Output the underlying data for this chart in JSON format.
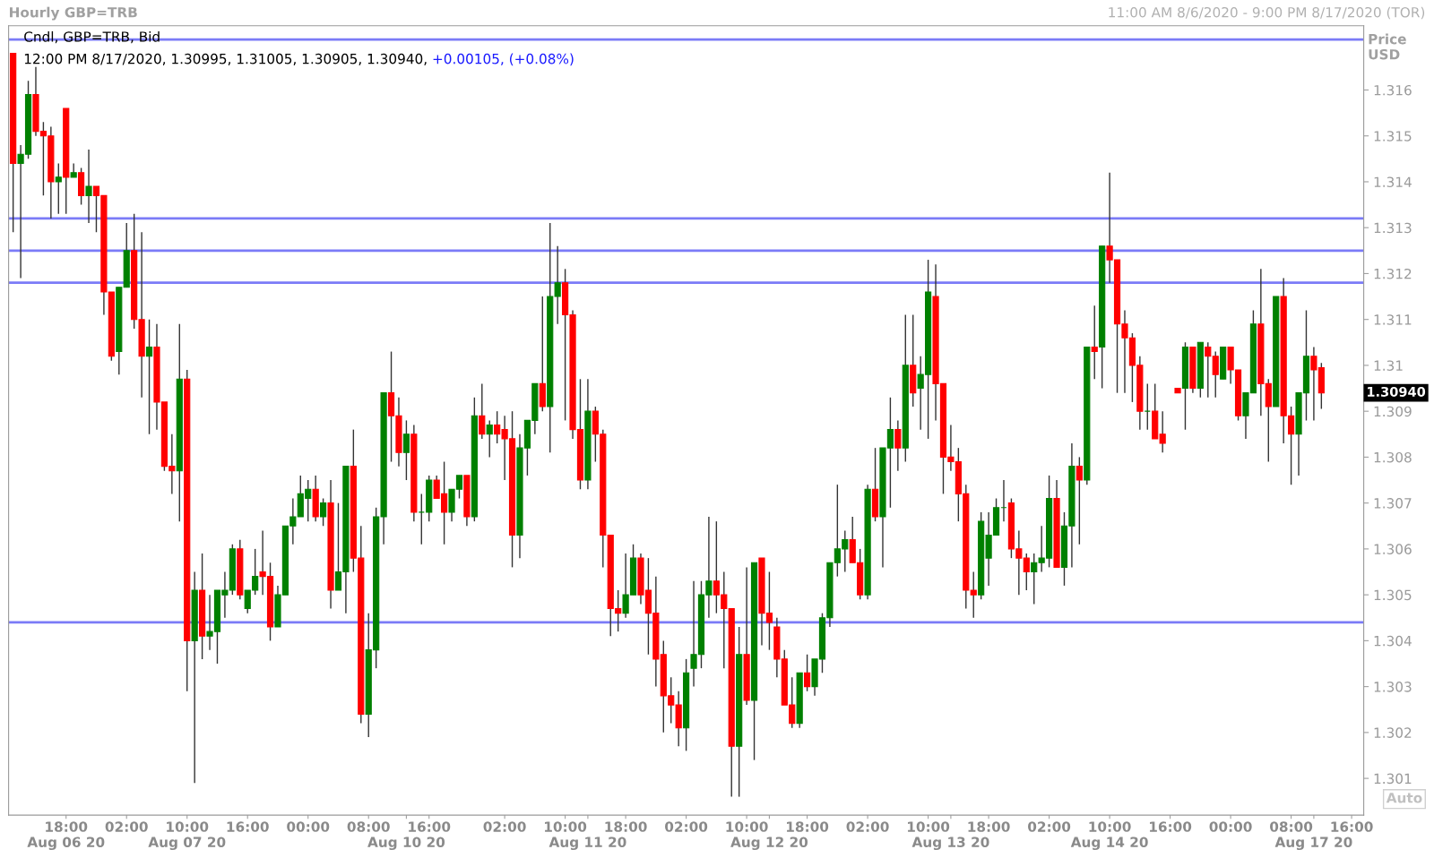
{
  "chart_data": {
    "type": "candlestick",
    "title": "Hourly GBP=TRB",
    "subtitle": "11:00 AM 8/6/2020 - 9:00 PM 8/17/2020 (TOR)",
    "ylabel": "Price\nUSD",
    "annotations": [
      "Cndl, GBP=TRB, Bid",
      "12:00 PM 8/17/2020, 1.30995, 1.31005, 1.30905, 1.30940,",
      "+0.00105, (+0.08%)",
      "1.30940",
      "Auto"
    ],
    "categories": [
      null,
      null,
      null,
      null,
      null,
      null,
      null,
      "18:00\nAug 06 20",
      null,
      null,
      null,
      null,
      null,
      null,
      null,
      "02:00",
      null,
      null,
      null,
      null,
      null,
      null,
      null,
      "10:00\nAug 07 20",
      null,
      null,
      null,
      null,
      null,
      null,
      null,
      "16:00",
      null,
      null,
      null,
      null,
      null,
      null,
      null,
      "00:00",
      null,
      null,
      null,
      null,
      null,
      null,
      null,
      "08:00",
      null,
      null,
      null,
      null,
      "\nAug 10 20",
      null,
      null,
      "16:00",
      null,
      null,
      null,
      null,
      null,
      null,
      null,
      null,
      null,
      "02:00",
      null,
      null,
      null,
      null,
      null,
      null,
      null,
      "10:00",
      null,
      null,
      "\nAug 11 20",
      null,
      null,
      null,
      null,
      "18:00",
      null,
      null,
      null,
      null,
      null,
      null,
      null,
      "02:00",
      null,
      null,
      null,
      null,
      null,
      null,
      null,
      "10:00",
      null,
      null,
      "\nAug 12 20",
      null,
      null,
      null,
      null,
      "18:00",
      null,
      null,
      null,
      null,
      null,
      null,
      null,
      "02:00",
      null,
      null,
      null,
      null,
      null,
      null,
      null,
      "10:00",
      null,
      null,
      "\nAug 13 20",
      null,
      null,
      null,
      null,
      "18:00",
      null,
      null,
      null,
      null,
      null,
      null,
      null,
      "02:00",
      null,
      null,
      null,
      null,
      null,
      null,
      null,
      "10:00\nAug 14 20",
      null,
      null,
      null,
      null,
      null,
      null,
      null,
      "16:00",
      null,
      null,
      null,
      null,
      null,
      null,
      null,
      "00:00",
      null,
      null,
      null,
      null,
      null,
      null,
      null,
      "08:00",
      null,
      null,
      "\nAug 17 20",
      null,
      null,
      null,
      null,
      "16:00",
      null
    ],
    "ohlc": [
      [
        1.3168,
        1.3168,
        1.3129,
        1.3144
      ],
      [
        1.3144,
        1.3148,
        1.3119,
        1.3146
      ],
      [
        1.3146,
        1.3162,
        1.3145,
        1.3159
      ],
      [
        1.3159,
        1.3165,
        1.315,
        1.3151
      ],
      [
        1.3151,
        1.3153,
        1.3137,
        1.315
      ],
      [
        1.315,
        1.3152,
        1.3132,
        1.314
      ],
      [
        1.314,
        1.3144,
        1.3133,
        1.3141
      ],
      [
        1.3156,
        1.3156,
        1.3133,
        1.3141
      ],
      [
        1.3141,
        1.3144,
        1.3141,
        1.3142
      ],
      [
        1.3142,
        1.3143,
        1.3135,
        1.3137
      ],
      [
        1.3137,
        1.3147,
        1.3131,
        1.3139
      ],
      [
        1.3139,
        1.3139,
        1.3129,
        1.3137
      ],
      [
        1.3137,
        1.3137,
        1.3111,
        1.3116
      ],
      [
        1.3116,
        1.3116,
        1.3101,
        1.3102
      ],
      [
        1.3103,
        1.3117,
        1.3098,
        1.3117
      ],
      [
        1.3117,
        1.3131,
        1.3117,
        1.3125
      ],
      [
        1.3125,
        1.3133,
        1.3108,
        1.311
      ],
      [
        1.311,
        1.3129,
        1.3093,
        1.3102
      ],
      [
        1.3102,
        1.311,
        1.3085,
        1.3104
      ],
      [
        1.3104,
        1.3109,
        1.3086,
        1.3092
      ],
      [
        1.3092,
        1.3092,
        1.3077,
        1.3078
      ],
      [
        1.3078,
        1.3085,
        1.3072,
        1.3077
      ],
      [
        1.3077,
        1.3109,
        1.3066,
        1.3097
      ],
      [
        1.3097,
        1.3099,
        1.3029,
        1.304
      ],
      [
        1.304,
        1.3055,
        1.3009,
        1.3051
      ],
      [
        1.3051,
        1.3059,
        1.3036,
        1.3041
      ],
      [
        1.3041,
        1.305,
        1.3038,
        1.3042
      ],
      [
        1.3042,
        1.3051,
        1.3035,
        1.3051
      ],
      [
        1.305,
        1.3055,
        1.3045,
        1.3051
      ],
      [
        1.3051,
        1.3061,
        1.305,
        1.306
      ],
      [
        1.306,
        1.3062,
        1.3049,
        1.305
      ],
      [
        1.3047,
        1.3051,
        1.3046,
        1.3051
      ],
      [
        1.3051,
        1.306,
        1.305,
        1.3054
      ],
      [
        1.3055,
        1.3064,
        1.305,
        1.3054
      ],
      [
        1.3054,
        1.3057,
        1.304,
        1.3043
      ],
      [
        1.3043,
        1.3052,
        1.3043,
        1.305
      ],
      [
        1.305,
        1.3065,
        1.305,
        1.3065
      ],
      [
        1.3065,
        1.3071,
        1.3061,
        1.3067
      ],
      [
        1.3067,
        1.3076,
        1.3067,
        1.3072
      ],
      [
        1.3071,
        1.3075,
        1.3066,
        1.3073
      ],
      [
        1.3073,
        1.3076,
        1.3066,
        1.3067
      ],
      [
        1.3067,
        1.3071,
        1.3065,
        1.307
      ],
      [
        1.307,
        1.3075,
        1.3047,
        1.3051
      ],
      [
        1.3051,
        1.307,
        1.3051,
        1.3055
      ],
      [
        1.3055,
        1.3078,
        1.3046,
        1.3078
      ],
      [
        1.3078,
        1.3086,
        1.3055,
        1.3058
      ],
      [
        1.3058,
        1.3065,
        1.3022,
        1.3024
      ],
      [
        1.3024,
        1.3046,
        1.3019,
        1.3038
      ],
      [
        1.3038,
        1.3069,
        1.3034,
        1.3067
      ],
      [
        1.3067,
        1.3094,
        1.3061,
        1.3094
      ],
      [
        1.3094,
        1.3103,
        1.3079,
        1.3089
      ],
      [
        1.3089,
        1.3093,
        1.3078,
        1.3081
      ],
      [
        1.3081,
        1.3088,
        1.3075,
        1.3085
      ],
      [
        1.3085,
        1.3087,
        1.3066,
        1.3068
      ],
      [
        1.3068,
        1.3072,
        1.3061,
        1.3068
      ],
      [
        1.3068,
        1.3076,
        1.3066,
        1.3075
      ],
      [
        1.3075,
        1.3076,
        1.3071,
        1.3071
      ],
      [
        1.3072,
        1.3079,
        1.3061,
        1.3068
      ],
      [
        1.3068,
        1.3073,
        1.3066,
        1.3073
      ],
      [
        1.3073,
        1.3076,
        1.3071,
        1.3076
      ],
      [
        1.3076,
        1.3076,
        1.3065,
        1.3067
      ],
      [
        1.3067,
        1.3093,
        1.3066,
        1.3089
      ],
      [
        1.3089,
        1.3096,
        1.3084,
        1.3085
      ],
      [
        1.3085,
        1.3088,
        1.308,
        1.3087
      ],
      [
        1.3087,
        1.309,
        1.3083,
        1.3085
      ],
      [
        1.3086,
        1.3089,
        1.3075,
        1.3084
      ],
      [
        1.3084,
        1.309,
        1.3056,
        1.3063
      ],
      [
        1.3063,
        1.3085,
        1.3058,
        1.3082
      ],
      [
        1.3082,
        1.3088,
        1.3076,
        1.3088
      ],
      [
        1.3088,
        1.3096,
        1.3085,
        1.3096
      ],
      [
        1.3096,
        1.3115,
        1.309,
        1.3091
      ],
      [
        1.3091,
        1.3131,
        1.3081,
        1.3115
      ],
      [
        1.3115,
        1.3126,
        1.3109,
        1.3118
      ],
      [
        1.3118,
        1.3121,
        1.3088,
        1.3111
      ],
      [
        1.3111,
        1.3112,
        1.3084,
        1.3086
      ],
      [
        1.3086,
        1.3097,
        1.3073,
        1.3075
      ],
      [
        1.3075,
        1.3097,
        1.3073,
        1.309
      ],
      [
        1.309,
        1.3091,
        1.3079,
        1.3085
      ],
      [
        1.3085,
        1.3086,
        1.3056,
        1.3063
      ],
      [
        1.3063,
        1.3063,
        1.3041,
        1.3047
      ],
      [
        1.3047,
        1.3051,
        1.3042,
        1.3046
      ],
      [
        1.3046,
        1.3059,
        1.3045,
        1.305
      ],
      [
        1.305,
        1.3061,
        1.305,
        1.3058
      ],
      [
        1.3058,
        1.3059,
        1.3048,
        1.305
      ],
      [
        1.3051,
        1.3058,
        1.3037,
        1.3046
      ],
      [
        1.3046,
        1.3054,
        1.303,
        1.3036
      ],
      [
        1.3037,
        1.304,
        1.302,
        1.3028
      ],
      [
        1.3028,
        1.3032,
        1.3022,
        1.3026
      ],
      [
        1.3026,
        1.3029,
        1.3017,
        1.3021
      ],
      [
        1.3021,
        1.3036,
        1.3016,
        1.3033
      ],
      [
        1.3034,
        1.3053,
        1.303,
        1.3037
      ],
      [
        1.3037,
        1.3053,
        1.3034,
        1.305
      ],
      [
        1.305,
        1.3067,
        1.3045,
        1.3053
      ],
      [
        1.3053,
        1.3066,
        1.3046,
        1.305
      ],
      [
        1.305,
        1.3055,
        1.3034,
        1.3047
      ],
      [
        1.3047,
        1.3047,
        1.3006,
        1.3017
      ],
      [
        1.3017,
        1.3043,
        1.3006,
        1.3037
      ],
      [
        1.3037,
        1.3056,
        1.3026,
        1.3027
      ],
      [
        1.3027,
        1.3057,
        1.3014,
        1.3057
      ],
      [
        1.3058,
        1.3058,
        1.3039,
        1.3046
      ],
      [
        1.3046,
        1.3055,
        1.3038,
        1.3044
      ],
      [
        1.3043,
        1.3045,
        1.3032,
        1.3036
      ],
      [
        1.3036,
        1.3038,
        1.3026,
        1.3026
      ],
      [
        1.3026,
        1.3032,
        1.3021,
        1.3022
      ],
      [
        1.3022,
        1.3033,
        1.3021,
        1.3033
      ],
      [
        1.3033,
        1.3037,
        1.3029,
        1.303
      ],
      [
        1.303,
        1.3036,
        1.3028,
        1.3036
      ],
      [
        1.3036,
        1.3046,
        1.3033,
        1.3045
      ],
      [
        1.3045,
        1.3057,
        1.3043,
        1.3057
      ],
      [
        1.3057,
        1.3074,
        1.3054,
        1.306
      ],
      [
        1.306,
        1.3064,
        1.3055,
        1.3062
      ],
      [
        1.3062,
        1.3067,
        1.3057,
        1.3057
      ],
      [
        1.3057,
        1.306,
        1.3049,
        1.305
      ],
      [
        1.305,
        1.3074,
        1.3049,
        1.3073
      ],
      [
        1.3073,
        1.3082,
        1.3066,
        1.3067
      ],
      [
        1.3067,
        1.3082,
        1.3056,
        1.3082
      ],
      [
        1.3082,
        1.3093,
        1.3069,
        1.3086
      ],
      [
        1.3086,
        1.3088,
        1.3077,
        1.3082
      ],
      [
        1.3082,
        1.3111,
        1.3079,
        1.31
      ],
      [
        1.31,
        1.3111,
        1.3091,
        1.3094
      ],
      [
        1.3095,
        1.3102,
        1.3086,
        1.3098
      ],
      [
        1.3098,
        1.3123,
        1.3084,
        1.3116
      ],
      [
        1.3115,
        1.3122,
        1.3088,
        1.3096
      ],
      [
        1.3096,
        1.3096,
        1.3072,
        1.308
      ],
      [
        1.308,
        1.3087,
        1.3077,
        1.3079
      ],
      [
        1.3079,
        1.3082,
        1.3066,
        1.3072
      ],
      [
        1.3072,
        1.3074,
        1.3047,
        1.3051
      ],
      [
        1.3051,
        1.3055,
        1.3045,
        1.305
      ],
      [
        1.305,
        1.3068,
        1.3049,
        1.3066
      ],
      [
        1.3058,
        1.3068,
        1.3052,
        1.3063
      ],
      [
        1.3063,
        1.3071,
        1.3063,
        1.3069
      ],
      [
        1.3069,
        1.3075,
        1.3066,
        1.3069
      ],
      [
        1.307,
        1.3071,
        1.3058,
        1.306
      ],
      [
        1.306,
        1.3064,
        1.305,
        1.3058
      ],
      [
        1.3058,
        1.3059,
        1.3051,
        1.3055
      ],
      [
        1.3055,
        1.3059,
        1.3048,
        1.3057
      ],
      [
        1.3057,
        1.3065,
        1.3055,
        1.3058
      ],
      [
        1.3058,
        1.3076,
        1.3056,
        1.3071
      ],
      [
        1.3071,
        1.3075,
        1.3056,
        1.3056
      ],
      [
        1.3056,
        1.3068,
        1.3052,
        1.3065
      ],
      [
        1.3065,
        1.3083,
        1.3056,
        1.3078
      ],
      [
        1.3078,
        1.308,
        1.3061,
        1.3075
      ],
      [
        1.3075,
        1.3104,
        1.3074,
        1.3104
      ],
      [
        1.3104,
        1.3113,
        1.3097,
        1.3103
      ],
      [
        1.3104,
        1.3126,
        1.3095,
        1.3126
      ],
      [
        1.3126,
        1.3142,
        1.3118,
        1.3123
      ],
      [
        1.3123,
        1.3123,
        1.3094,
        1.3109
      ],
      [
        1.3109,
        1.3112,
        1.3094,
        1.3106
      ],
      [
        1.3106,
        1.3107,
        1.3092,
        1.31
      ],
      [
        1.31,
        1.3102,
        1.3086,
        1.309
      ],
      [
        1.309,
        1.3096,
        1.3086,
        1.309
      ],
      [
        1.309,
        1.3096,
        1.3084,
        1.3084
      ],
      [
        1.3085,
        1.309,
        1.3081,
        1.3083
      ],
      null,
      [
        1.3095,
        1.3095,
        1.3094,
        1.3094
      ],
      [
        1.3095,
        1.3105,
        1.3086,
        1.3104
      ],
      [
        1.3104,
        1.3104,
        1.3094,
        1.3095
      ],
      [
        1.3095,
        1.3105,
        1.3093,
        1.3105
      ],
      [
        1.3104,
        1.3105,
        1.3093,
        1.3102
      ],
      [
        1.3102,
        1.3103,
        1.3093,
        1.3098
      ],
      [
        1.3097,
        1.3104,
        1.3097,
        1.3104
      ],
      [
        1.3104,
        1.3104,
        1.3096,
        1.3099
      ],
      [
        1.3099,
        1.3099,
        1.3088,
        1.3089
      ],
      [
        1.3089,
        1.3094,
        1.3084,
        1.3094
      ],
      [
        1.3094,
        1.3112,
        1.3094,
        1.3109
      ],
      [
        1.3109,
        1.3121,
        1.3089,
        1.3096
      ],
      [
        1.3096,
        1.3097,
        1.3079,
        1.3091
      ],
      [
        1.3091,
        1.3115,
        1.3091,
        1.3115
      ],
      [
        1.3115,
        1.3119,
        1.3083,
        1.3089
      ],
      [
        1.3089,
        1.3091,
        1.3074,
        1.3085
      ],
      [
        1.3085,
        1.3094,
        1.3076,
        1.3094
      ],
      [
        1.3094,
        1.3112,
        1.3088,
        1.3102
      ],
      [
        1.3102,
        1.3104,
        1.3088,
        1.3099
      ],
      [
        1.30995,
        1.31005,
        1.30905,
        1.3094
      ],
      null,
      null,
      null,
      null,
      null
    ],
    "ylim": [
      1.3002,
      1.3174
    ],
    "yticks": [
      1.301,
      1.302,
      1.303,
      1.304,
      1.305,
      1.306,
      1.307,
      1.308,
      1.309,
      1.31,
      1.311,
      1.312,
      1.313,
      1.314,
      1.315,
      1.316
    ],
    "ref_lines": [
      {
        "axis": "y",
        "value": 1.3171,
        "color": "#7b7bf7"
      },
      {
        "axis": "y",
        "value": 1.3132,
        "color": "#7b7bf7"
      },
      {
        "axis": "y",
        "value": 1.3125,
        "color": "#7b7bf7"
      },
      {
        "axis": "y",
        "value": 1.3118,
        "color": "#7b7bf7"
      },
      {
        "axis": "y",
        "value": 1.3044,
        "color": "#7b7bf7"
      }
    ],
    "grid": false
  }
}
